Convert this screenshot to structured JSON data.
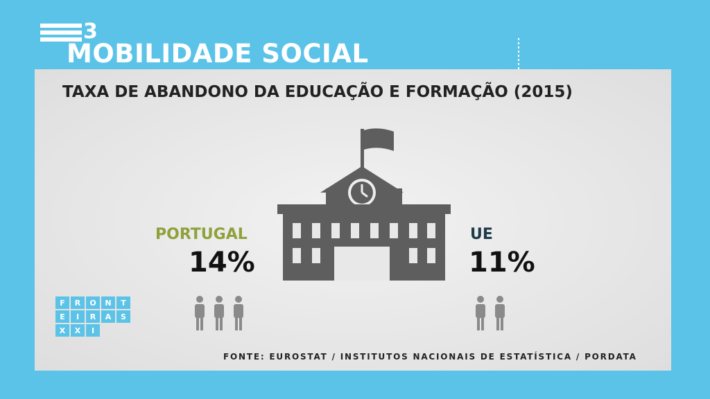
{
  "channel": {
    "logo": "3"
  },
  "header": {
    "title": "MOBILIDADE SOCIAL"
  },
  "panel": {
    "subtitle": "TAXA DE ABANDONO DA EDUCAÇÃO E FORMAÇÃO (2015)",
    "left": {
      "label": "PORTUGAL",
      "value": "14%"
    },
    "right": {
      "label": "UE",
      "value": "11%"
    },
    "brand": {
      "rows": [
        [
          "F",
          "R",
          "O",
          "N",
          "T"
        ],
        [
          "E",
          "I",
          "R",
          "A",
          "S"
        ],
        [
          "X",
          "X",
          "I"
        ]
      ]
    },
    "source": "FONTE: EUROSTAT / INSTITUTOS NACIONAIS DE ESTATÍSTICA / PORDATA"
  }
}
